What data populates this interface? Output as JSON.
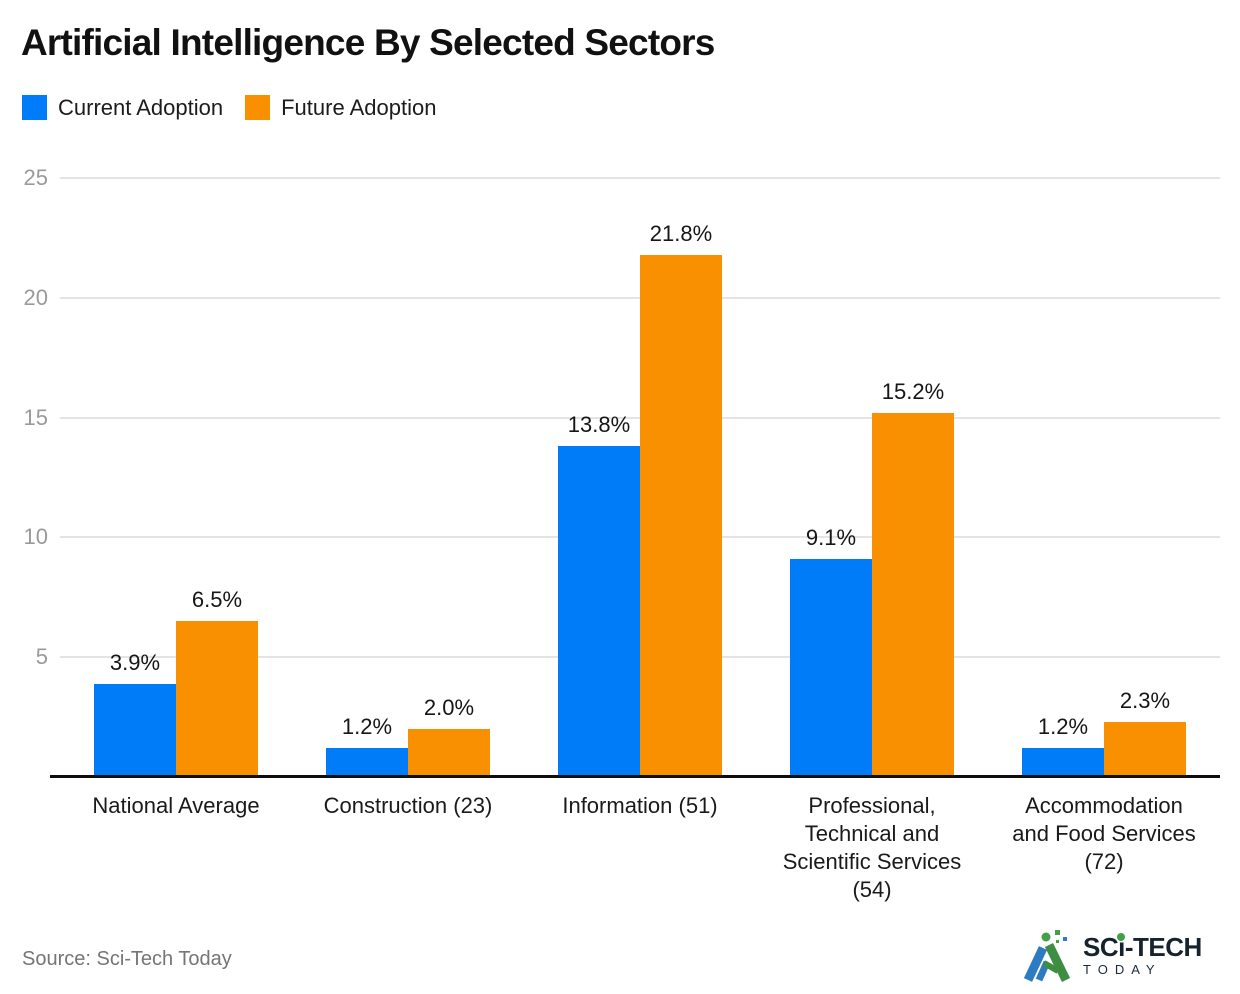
{
  "page": {
    "source": "Source: Sci-Tech Today"
  },
  "legend": {
    "items": [
      {
        "label": "Current Adoption",
        "color": "#007CF8"
      },
      {
        "label": "Future Adoption",
        "color": "#F89002"
      }
    ]
  },
  "logo": {
    "part1": "SC",
    "part2": "i",
    "part3": "-TECH",
    "sub": "TODAY"
  },
  "colors": {
    "current": "#007CF8",
    "future": "#F89002",
    "grid": "#E4E4E4",
    "axis": "#0D0D0D",
    "tick_text": "#9A9A9A",
    "value_text": "#161616",
    "category_text": "#1A1A1A",
    "title_text": "#111111",
    "source_text": "#757575",
    "logo_blue": "#2D7CC1",
    "logo_green": "#3E8E41",
    "logo_dot": "#43A047"
  },
  "chart_data": {
    "type": "bar",
    "title": "Artificial Intelligence By Selected Sectors",
    "categories": [
      "National Average",
      "Construction (23)",
      "Information (51)",
      "Professional, Technical and Scientific Services (54)",
      "Accommodation and Food Services (72)"
    ],
    "series": [
      {
        "name": "Current Adoption",
        "color": "#007CF8",
        "values": [
          3.9,
          1.2,
          13.8,
          9.1,
          1.2
        ],
        "labels": [
          "3.9%",
          "1.2%",
          "13.8%",
          "9.1%",
          "1.2%"
        ]
      },
      {
        "name": "Future Adoption",
        "color": "#F89002",
        "values": [
          6.5,
          2.0,
          21.8,
          15.2,
          2.3
        ],
        "labels": [
          "6.5%",
          "2.0%",
          "21.8%",
          "15.2%",
          "2.3%"
        ]
      }
    ],
    "yticks": [
      5,
      10,
      15,
      20,
      25
    ],
    "ylim": [
      0,
      25
    ],
    "grid": true,
    "legend_position": "top-left",
    "value_label_format": "{value}%",
    "xlabel": "",
    "ylabel": ""
  }
}
